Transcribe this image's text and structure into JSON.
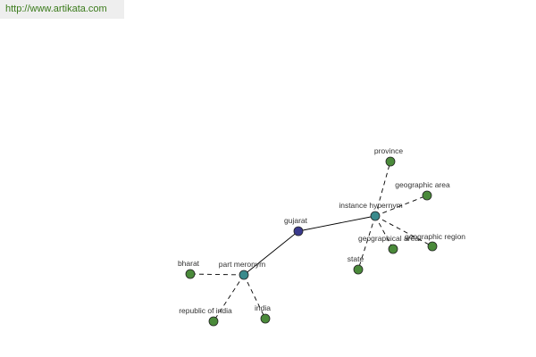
{
  "header": {
    "url": "http://www.artikata.com"
  },
  "nodes": [
    {
      "label": "gujarat"
    },
    {
      "label": "instance hypernym"
    },
    {
      "label": "part meronym"
    },
    {
      "label": "province"
    },
    {
      "label": "geographic area"
    },
    {
      "label": "geographic region"
    },
    {
      "label": "geographical area"
    },
    {
      "label": "state"
    },
    {
      "label": "bharat"
    },
    {
      "label": "republic of india"
    },
    {
      "label": "india"
    }
  ]
}
